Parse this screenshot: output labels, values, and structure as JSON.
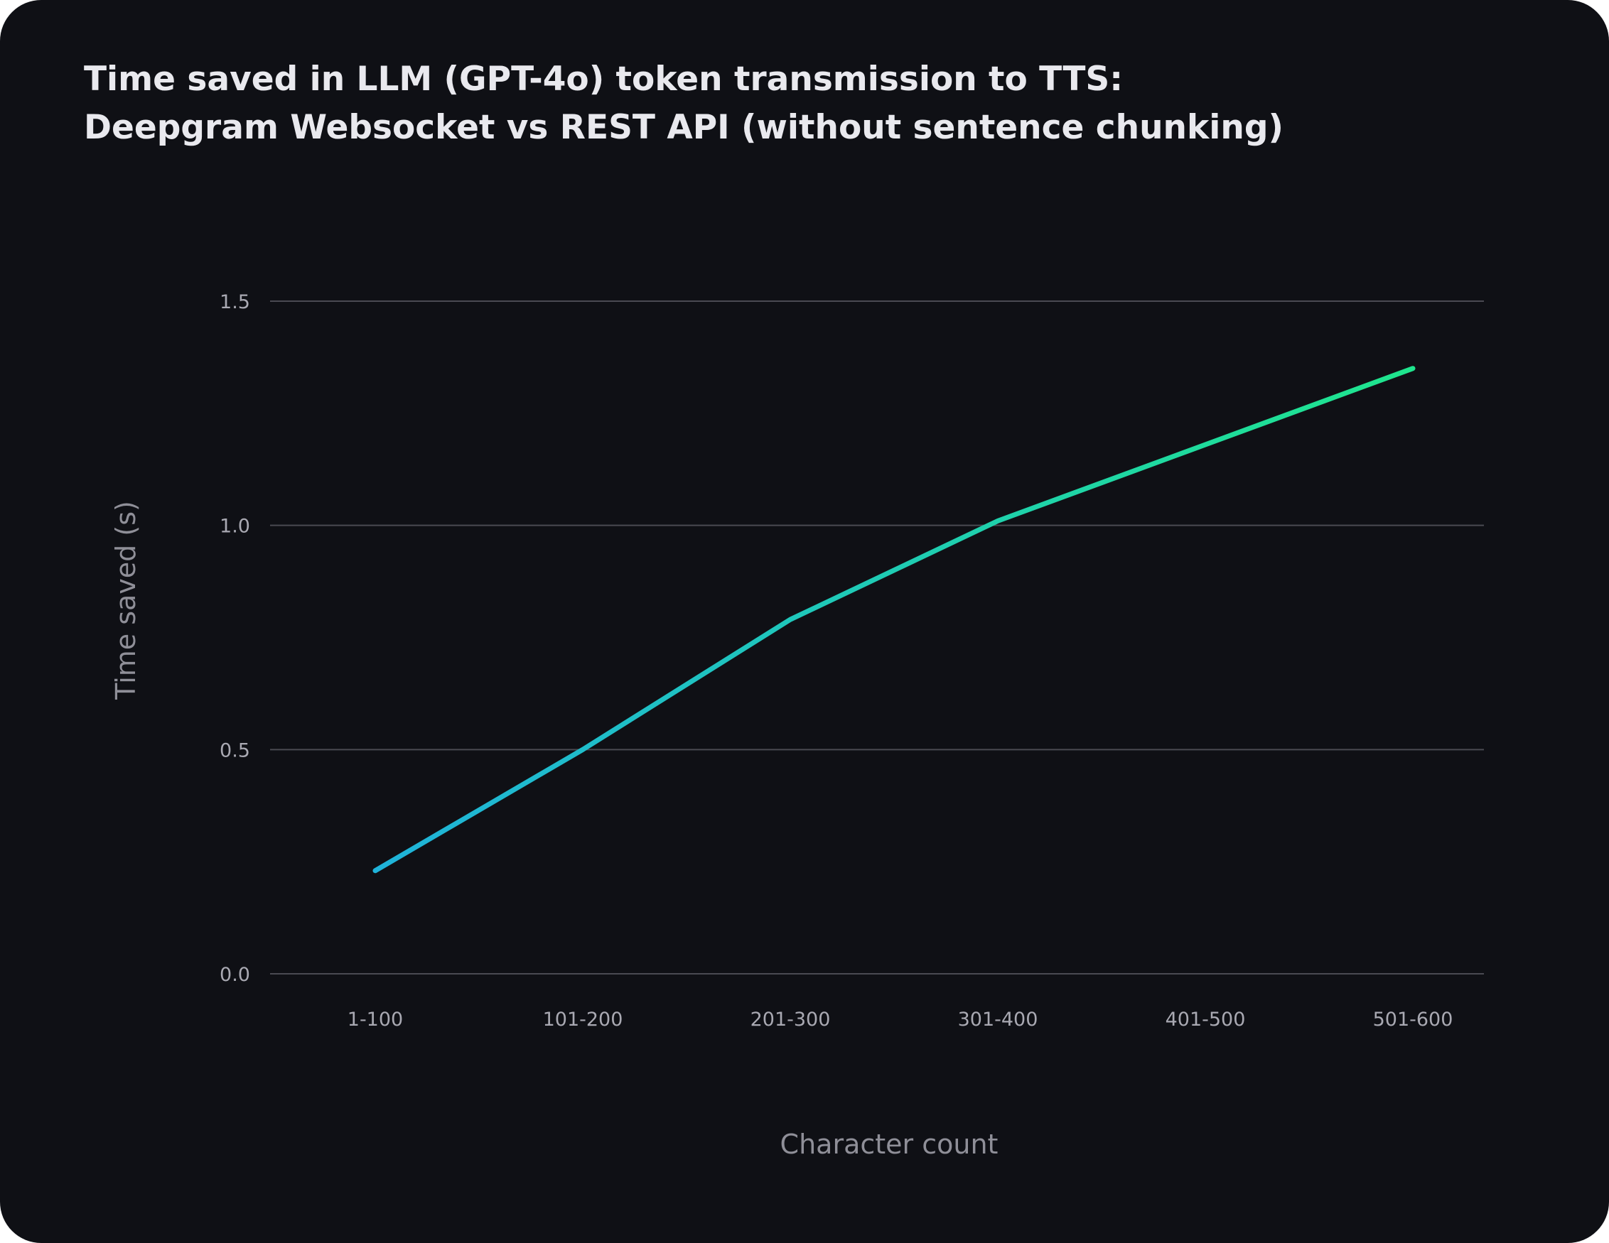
{
  "title": {
    "line1": "Time saved in LLM (GPT-4o) token transmission to TTS:",
    "line2": "Deepgram Websocket vs REST API (without sentence chunking)"
  },
  "chart_data": {
    "type": "line",
    "title": "Time saved in LLM (GPT-4o) token transmission to TTS: Deepgram Websocket vs REST API (without sentence chunking)",
    "xlabel": "Character count",
    "ylabel": "Time saved (s)",
    "categories": [
      "1-100",
      "101-200",
      "201-300",
      "301-400",
      "401-500",
      "501-600"
    ],
    "series": [
      {
        "values": [
          0.23,
          0.5,
          0.79,
          1.01,
          1.18,
          1.35
        ]
      }
    ],
    "ylim": [
      0,
      1.5
    ],
    "yticks": [
      0.0,
      0.5,
      1.0,
      1.5
    ],
    "ytick_labels": [
      "0.0",
      "0.5",
      "1.0",
      "1.5"
    ],
    "grid": "horizontal",
    "legend": "none",
    "colors": {
      "line_start": "#1fb3d9",
      "line_end": "#1fe58e",
      "background": "#0f1015",
      "gridline": "#4a4a52"
    }
  }
}
